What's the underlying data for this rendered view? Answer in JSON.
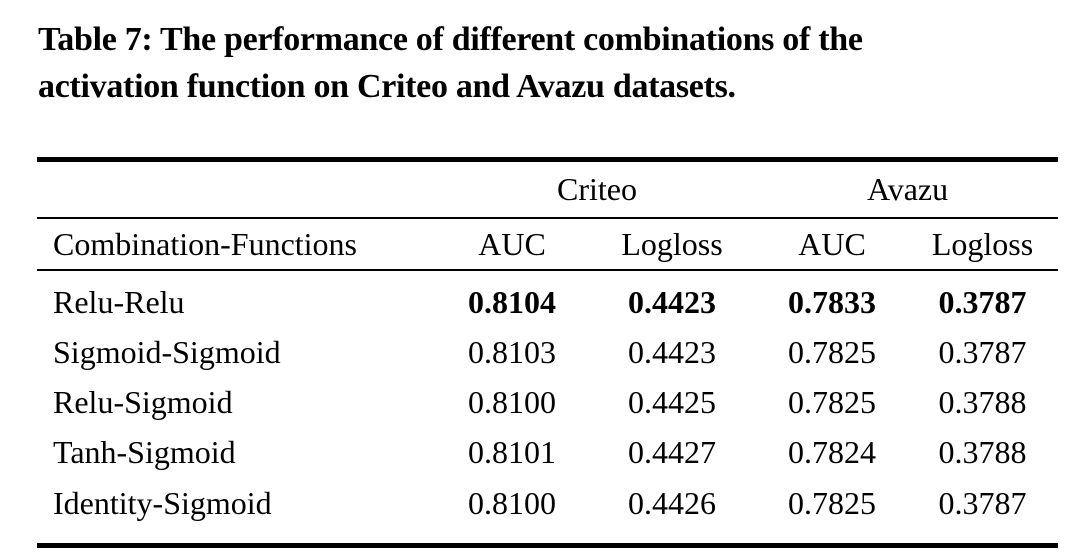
{
  "caption": {
    "line1": "Table 7: The performance of different combinations of the",
    "line2": "activation function on Criteo and Avazu datasets."
  },
  "table": {
    "group_headers": [
      "Criteo",
      "Avazu"
    ],
    "column_headers": [
      "Combination-Functions",
      "AUC",
      "Logloss",
      "AUC",
      "Logloss"
    ],
    "rows": [
      {
        "label": "Relu-Relu",
        "values": [
          "0.8104",
          "0.4423",
          "0.7833",
          "0.3787"
        ],
        "emphasis": "bold"
      },
      {
        "label": "Sigmoid-Sigmoid",
        "values": [
          "0.8103",
          "0.4423",
          "0.7825",
          "0.3787"
        ],
        "emphasis": "none"
      },
      {
        "label": "Relu-Sigmoid",
        "values": [
          "0.8100",
          "0.4425",
          "0.7825",
          "0.3788"
        ],
        "emphasis": "none"
      },
      {
        "label": "Tanh-Sigmoid",
        "values": [
          "0.8101",
          "0.4427",
          "0.7824",
          "0.3788"
        ],
        "emphasis": "none"
      },
      {
        "label": "Identity-Sigmoid",
        "values": [
          "0.8100",
          "0.4426",
          "0.7825",
          "0.3787"
        ],
        "emphasis": "none"
      }
    ]
  },
  "colors": {
    "text": "#000000",
    "background": "#ffffff",
    "rule": "#000000"
  }
}
